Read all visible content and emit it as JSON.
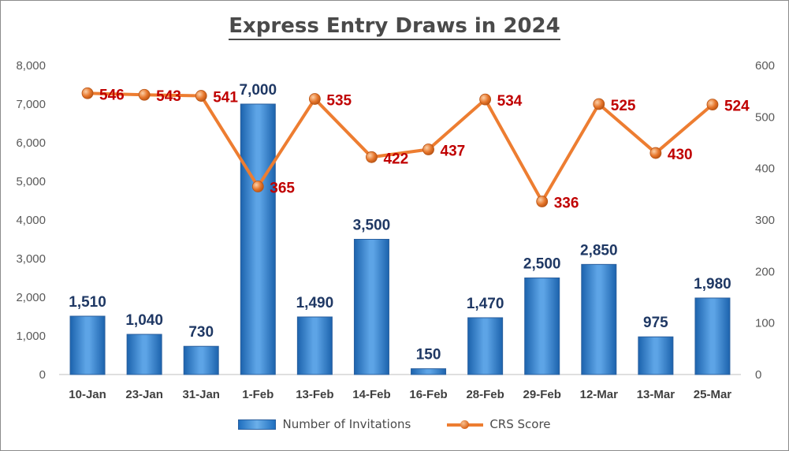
{
  "chart_data": {
    "type": "bar",
    "title": "Express Entry Draws in 2024",
    "categories": [
      "10-Jan",
      "23-Jan",
      "31-Jan",
      "1-Feb",
      "13-Feb",
      "14-Feb",
      "16-Feb",
      "28-Feb",
      "29-Feb",
      "12-Mar",
      "13-Mar",
      "25-Mar"
    ],
    "series": [
      {
        "name": "Number of Invitations",
        "type": "bar",
        "axis": "left",
        "color": "#2e75b6",
        "values": [
          1510,
          1040,
          730,
          7000,
          1490,
          3500,
          150,
          1470,
          2500,
          2850,
          975,
          1980
        ],
        "labels": [
          "1,510",
          "1,040",
          "730",
          "7,000",
          "1,490",
          "3,500",
          "150",
          "1,470",
          "2,500",
          "2,850",
          "975",
          "1,980"
        ]
      },
      {
        "name": "CRS Score",
        "type": "line",
        "axis": "right",
        "color": "#ed7d31",
        "values": [
          546,
          543,
          541,
          365,
          535,
          422,
          437,
          534,
          336,
          525,
          430,
          524
        ]
      }
    ],
    "y_left": {
      "min": 0,
      "max": 8000,
      "step": 1000,
      "ticks": [
        "0",
        "1,000",
        "2,000",
        "3,000",
        "4,000",
        "5,000",
        "6,000",
        "7,000",
        "8,000"
      ]
    },
    "y_right": {
      "min": 0,
      "max": 600,
      "step": 100,
      "ticks": [
        "0",
        "100",
        "200",
        "300",
        "400",
        "500",
        "600"
      ]
    },
    "grid": false,
    "legend_position": "bottom",
    "bar_label_color": "#1f3864",
    "line_label_color": "#c00000"
  }
}
